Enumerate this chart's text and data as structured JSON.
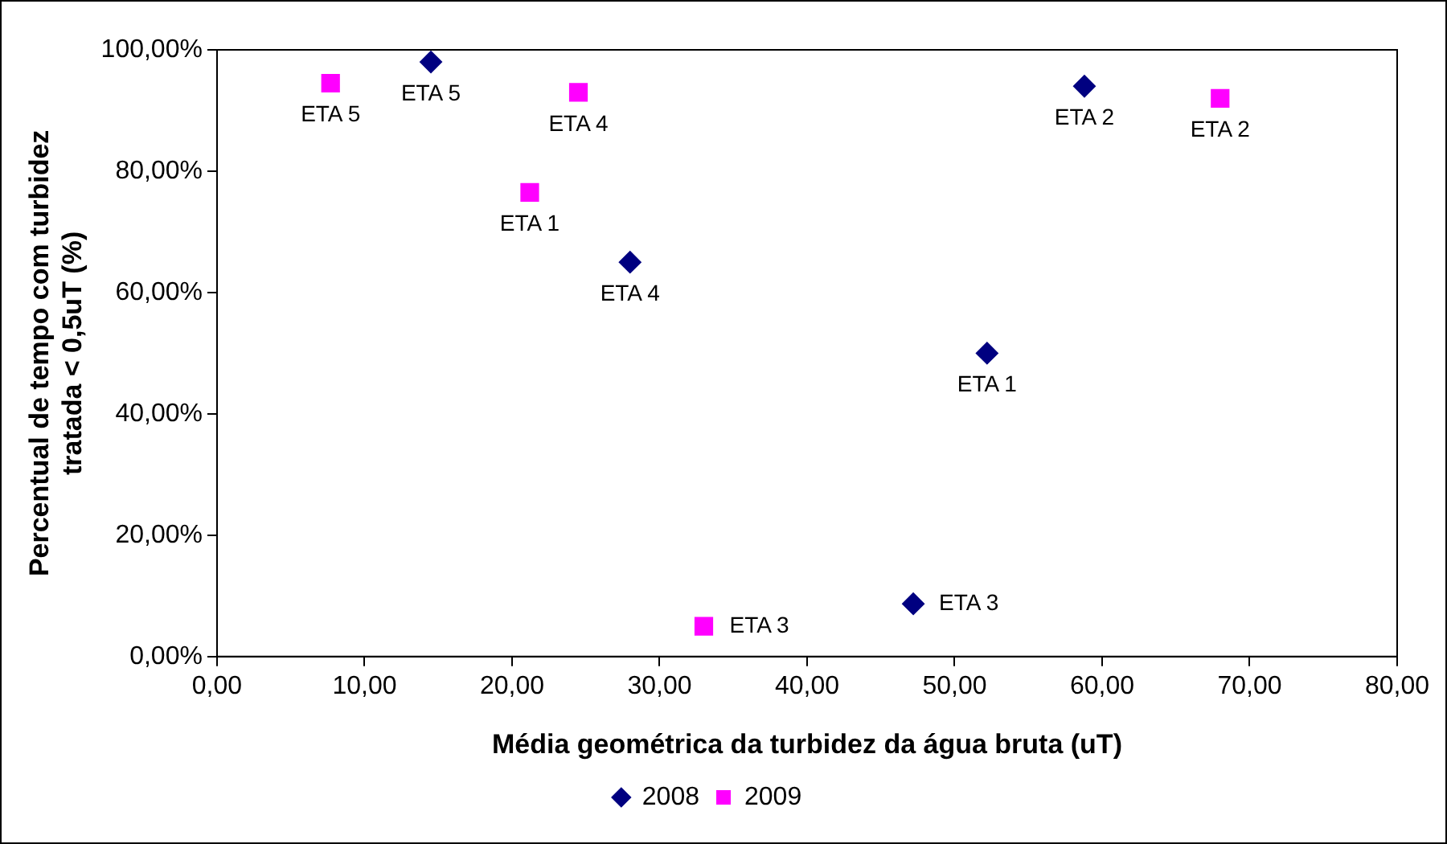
{
  "chart_data": {
    "type": "scatter",
    "xlabel": "Média geométrica da turbidez da água bruta (uT)",
    "ylabel": "Percentual de tempo com turbidez tratada < 0,5uT (%)",
    "xlim": [
      0,
      80
    ],
    "xticks": [
      {
        "value": 0,
        "label": "0,00"
      },
      {
        "value": 10,
        "label": "10,00"
      },
      {
        "value": 20,
        "label": "20,00"
      },
      {
        "value": 30,
        "label": "30,00"
      },
      {
        "value": 40,
        "label": "40,00"
      },
      {
        "value": 50,
        "label": "50,00"
      },
      {
        "value": 60,
        "label": "60,00"
      },
      {
        "value": 70,
        "label": "70,00"
      },
      {
        "value": 80,
        "label": "80,00"
      }
    ],
    "ylim": [
      0,
      100
    ],
    "yticks": [
      {
        "value": 0,
        "label": "0,00%"
      },
      {
        "value": 20,
        "label": "20,00%"
      },
      {
        "value": 40,
        "label": "40,00%"
      },
      {
        "value": 60,
        "label": "60,00%"
      },
      {
        "value": 80,
        "label": "80,00%"
      },
      {
        "value": 100,
        "label": "100,00%"
      }
    ],
    "grid": false,
    "legend": "bottom",
    "series": [
      {
        "name": "2008",
        "color": "#000080",
        "marker": "diamond",
        "x": [
          52.2,
          58.8,
          47.2,
          28,
          14.5
        ],
        "values": [
          50,
          94,
          8.7,
          65,
          98
        ],
        "value_labels": [
          "ETA 1",
          "ETA 2",
          "ETA 3",
          "ETA 4",
          "ETA 5"
        ]
      },
      {
        "name": "2009",
        "color": "#ff00ff",
        "marker": "square",
        "x": [
          21.2,
          68,
          33,
          24.5,
          7.7
        ],
        "values": [
          76.5,
          92,
          5,
          93,
          94.5
        ],
        "value_labels": [
          "ETA 1",
          "ETA 2",
          "ETA 3",
          "ETA 4",
          "ETA 5"
        ]
      }
    ]
  }
}
